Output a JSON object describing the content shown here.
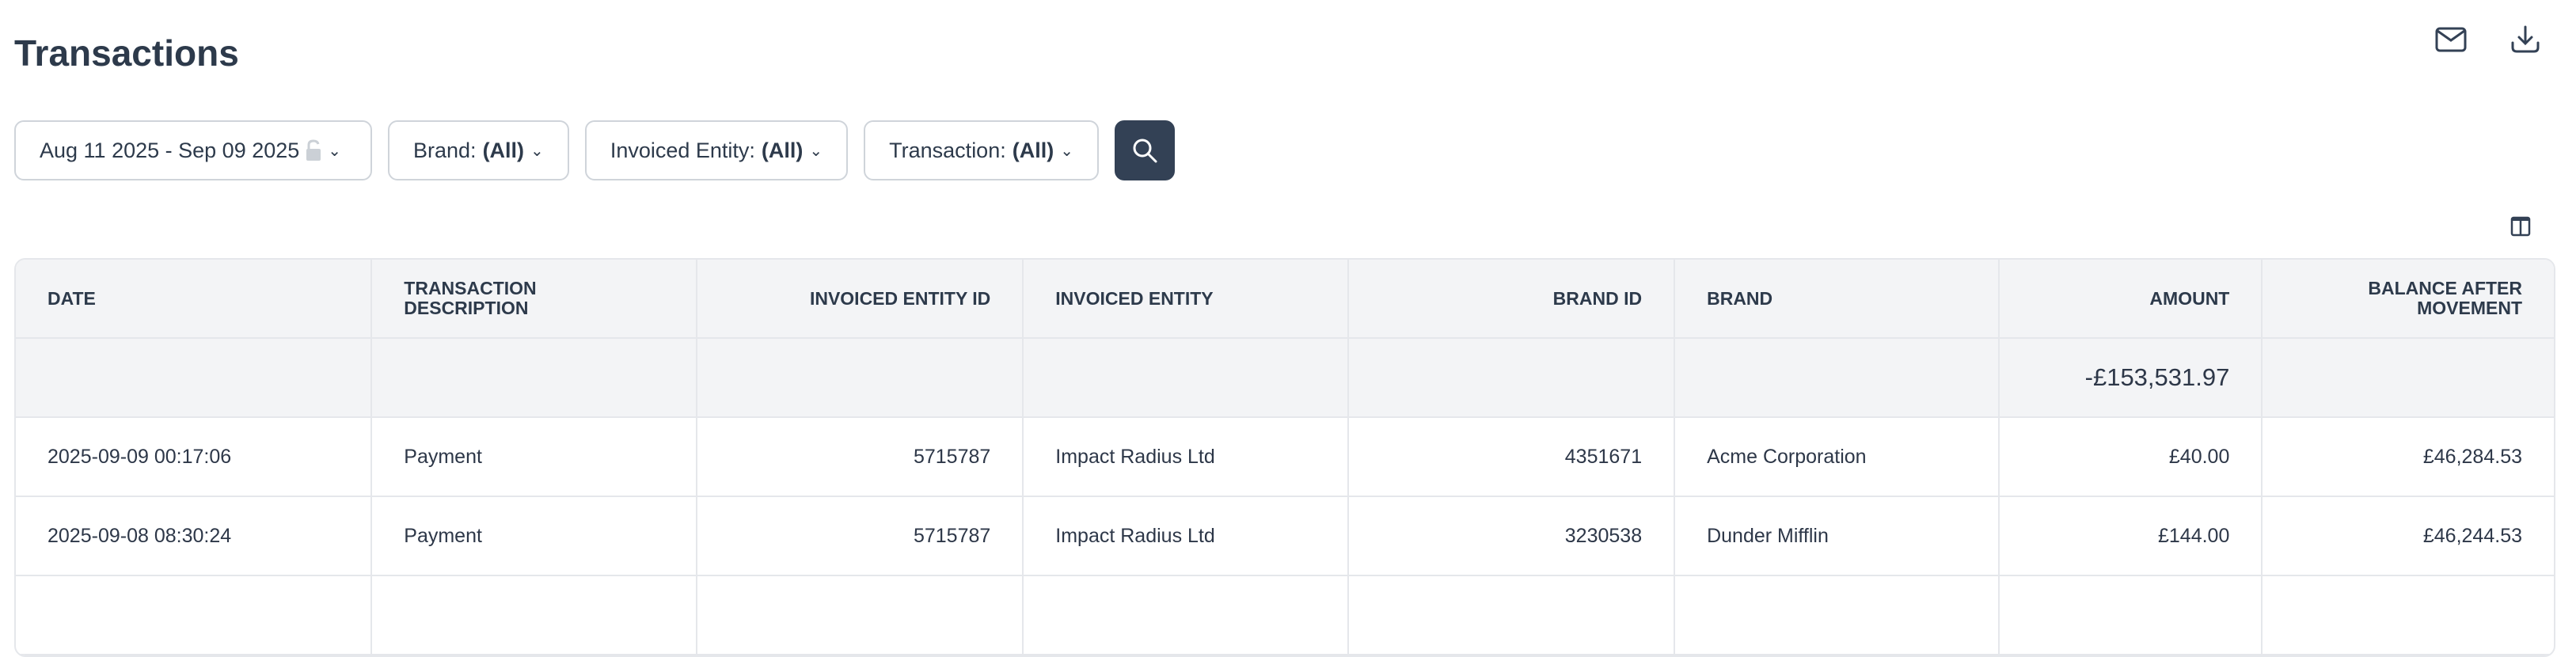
{
  "page": {
    "title": "Transactions"
  },
  "toolbar": {
    "email_icon": "mail-icon",
    "download_icon": "download-icon",
    "columns_icon": "columns-icon"
  },
  "filters": {
    "date_range": "Aug 11 2025 - Sep 09 2025",
    "brand_label": "Brand:",
    "brand_value": "(All)",
    "entity_label": "Invoiced Entity:",
    "entity_value": "(All)",
    "transaction_label": "Transaction:",
    "transaction_value": "(All)"
  },
  "table": {
    "headers": [
      "Date",
      "Transaction Description",
      "Invoiced Entity ID",
      "Invoiced Entity",
      "Brand ID",
      "Brand",
      "Amount",
      "Balance After Movement"
    ],
    "total_amount": "-£153,531.97",
    "rows": [
      [
        "2025-09-09 00:17:06",
        "Payment",
        "5715787",
        "Impact Radius Ltd",
        "4351671",
        "Acme Corporation",
        "£40.00",
        "£46,284.53"
      ],
      [
        "2025-09-08 08:30:24",
        "Payment",
        "5715787",
        "Impact Radius Ltd",
        "3230538",
        "Dunder Mifflin",
        "£144.00",
        "£46,244.53"
      ],
      [
        "",
        "",
        "",
        "",
        "",
        "",
        "",
        ""
      ]
    ]
  },
  "colors": {
    "accent": "#334155",
    "header_bg": "#f3f4f6",
    "border": "#e5e7eb"
  }
}
